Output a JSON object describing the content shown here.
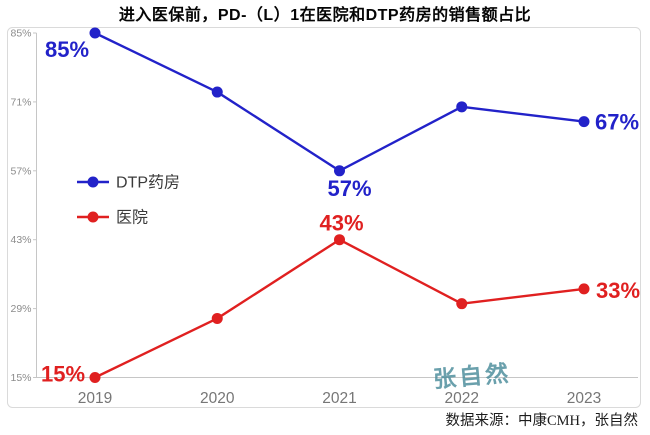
{
  "title": "进入医保前，PD-（L）1在医院和DTP药房的销售额占比",
  "watermark": "张自然",
  "footer": {
    "source_note": "数据来源：中康CMH，张自然"
  },
  "chart_data": {
    "type": "line",
    "title": "进入医保前，PD-（L）1在医院和DTP药房的销售额占比",
    "x": [
      "2019",
      "2020",
      "2021",
      "2022",
      "2023"
    ],
    "series": [
      {
        "name": "DTP药房",
        "color": "#2222c9",
        "values": [
          85,
          73,
          57,
          70,
          67
        ],
        "point_labels": [
          "85%",
          null,
          "57%",
          null,
          "67%"
        ],
        "label_offsets": [
          [
            -28,
            16
          ],
          null,
          [
            10,
            17
          ],
          null,
          [
            33,
            0
          ]
        ]
      },
      {
        "name": "医院",
        "color": "#e02020",
        "values": [
          15,
          27,
          43,
          30,
          33
        ],
        "point_labels": [
          "15%",
          null,
          "43%",
          null,
          "33%"
        ],
        "label_offsets": [
          [
            -32,
            -4
          ],
          null,
          [
            2,
            -17
          ],
          null,
          [
            34,
            1
          ]
        ]
      }
    ],
    "ylim": [
      15,
      85
    ],
    "ytick_labels": [
      "85%",
      "71%",
      "57%",
      "43%",
      "29%",
      "15%"
    ],
    "ytick_values": [
      85,
      71,
      57,
      43,
      29,
      15
    ],
    "xlabel": "",
    "ylabel": "",
    "grid": false,
    "legend_position": "left-middle",
    "axis_color": "#c6c6c6",
    "border_color": "#dadada",
    "tick_text_color": "#8c8c8c",
    "year_text_color": "#767676",
    "legend_text_color": "#3a3a3a"
  }
}
